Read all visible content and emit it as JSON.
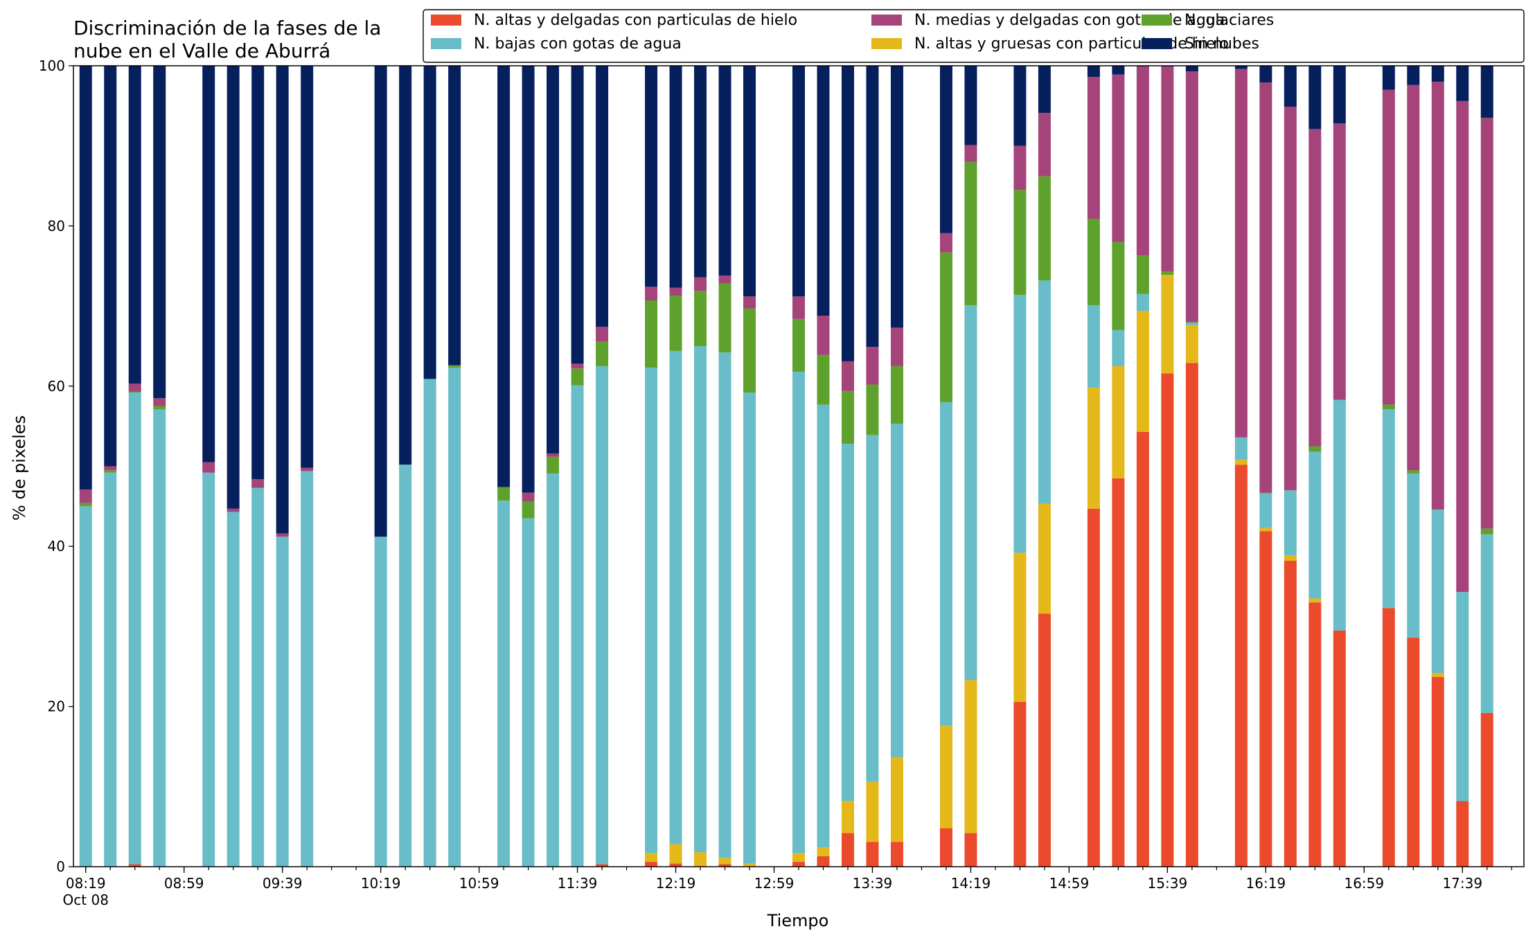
{
  "chart_data": {
    "type": "bar",
    "stacked": true,
    "title_lines": [
      "Discriminación de la fases de la",
      "nube en el Valle de Aburrá"
    ],
    "xlabel": "Tiempo",
    "ylabel": "% de pixeles",
    "ylim": [
      0,
      100
    ],
    "yticks": [
      0,
      20,
      40,
      60,
      80,
      100
    ],
    "x_start": "08:19",
    "x_end": "17:59",
    "bar_interval_minutes": 10,
    "xtick_interval_minutes": 40,
    "xtick_labels": [
      "08:19",
      "08:59",
      "09:39",
      "10:19",
      "10:59",
      "11:39",
      "12:19",
      "12:59",
      "13:39",
      "14:19",
      "14:59",
      "15:39",
      "16:19",
      "16:59",
      "17:39"
    ],
    "xtick_sublabel": "Oct 08",
    "legend_position": "top-right",
    "grid": false,
    "series": [
      {
        "name": "N. altas y delgadas con particulas de hielo",
        "color": "#ec4a2c"
      },
      {
        "name": "N. altas y gruesas con particulas de hielo",
        "color": "#e5b81a"
      },
      {
        "name": "N. bajas con gotas de agua",
        "color": "#68bdc8"
      },
      {
        "name": "N. glaciares",
        "color": "#5ea22d"
      },
      {
        "name": "N. medias y delgadas con gotas de agua",
        "color": "#a5437b"
      },
      {
        "name": "Sin nubes",
        "color": "#06205e"
      }
    ],
    "legend_order": [
      0,
      2,
      4,
      1,
      3,
      5
    ],
    "bars": [
      {
        "time": "08:19",
        "values": [
          0,
          0,
          45,
          0.4,
          1.7,
          52.9
        ]
      },
      {
        "time": "08:29",
        "values": [
          0,
          0,
          49.2,
          0.3,
          0.5,
          50
        ]
      },
      {
        "time": "08:39",
        "values": [
          0.3,
          0,
          58.9,
          0.1,
          1.0,
          39.7
        ]
      },
      {
        "time": "08:49",
        "values": [
          0,
          0,
          57.1,
          0.4,
          1.0,
          41.5
        ]
      },
      {
        "time": "09:09",
        "values": [
          0,
          0,
          49.2,
          0,
          1.3,
          49.5
        ]
      },
      {
        "time": "09:19",
        "values": [
          0,
          0,
          44.3,
          0,
          0.4,
          55.3
        ]
      },
      {
        "time": "09:29",
        "values": [
          0,
          0,
          47.3,
          0,
          1.1,
          51.6
        ]
      },
      {
        "time": "09:39",
        "values": [
          0,
          0,
          41.2,
          0,
          0.4,
          58.4
        ]
      },
      {
        "time": "09:49",
        "values": [
          0,
          0,
          49.4,
          0,
          0.4,
          50.2
        ]
      },
      {
        "time": "10:19",
        "values": [
          0,
          0,
          41.2,
          0,
          0,
          58.8
        ]
      },
      {
        "time": "10:29",
        "values": [
          0,
          0,
          50.2,
          0,
          0,
          49.8
        ]
      },
      {
        "time": "10:39",
        "values": [
          0,
          0,
          60.9,
          0,
          0,
          39.1
        ]
      },
      {
        "time": "10:49",
        "values": [
          0,
          0,
          62.3,
          0.3,
          0,
          37.4
        ]
      },
      {
        "time": "11:09",
        "values": [
          0,
          0,
          45.7,
          1.7,
          0,
          52.6
        ]
      },
      {
        "time": "11:19",
        "values": [
          0,
          0,
          43.5,
          2.1,
          1.1,
          53.3
        ]
      },
      {
        "time": "11:29",
        "values": [
          0,
          0,
          49.1,
          2.1,
          0.4,
          48.4
        ]
      },
      {
        "time": "11:39",
        "values": [
          0,
          0,
          60.1,
          2.1,
          0.6,
          37.2
        ]
      },
      {
        "time": "11:49",
        "values": [
          0.3,
          0,
          62.2,
          3.1,
          1.8,
          32.6
        ]
      },
      {
        "time": "12:09",
        "values": [
          0.6,
          1.1,
          60.6,
          8.4,
          1.7,
          27.6
        ]
      },
      {
        "time": "12:19",
        "values": [
          0.4,
          2.4,
          61.6,
          6.9,
          1.0,
          27.7
        ]
      },
      {
        "time": "12:29",
        "values": [
          0.1,
          1.7,
          63.2,
          6.9,
          1.7,
          26.4
        ]
      },
      {
        "time": "12:39",
        "values": [
          0.3,
          0.8,
          63.1,
          8.6,
          1.0,
          26.2
        ]
      },
      {
        "time": "12:49",
        "values": [
          0,
          0.4,
          58.8,
          10.5,
          1.5,
          28.8
        ]
      },
      {
        "time": "13:09",
        "values": [
          0.6,
          1.1,
          60.1,
          6.6,
          2.8,
          28.8
        ]
      },
      {
        "time": "13:19",
        "values": [
          1.3,
          1.1,
          55.3,
          6.2,
          4.9,
          31.2
        ]
      },
      {
        "time": "13:29",
        "values": [
          4.2,
          4.0,
          44.6,
          6.6,
          3.7,
          36.9
        ]
      },
      {
        "time": "13:39",
        "values": [
          3.1,
          7.5,
          43.3,
          6.3,
          4.7,
          35.1
        ]
      },
      {
        "time": "13:49",
        "values": [
          3.1,
          10.6,
          41.6,
          7.2,
          4.8,
          32.7
        ]
      },
      {
        "time": "14:09",
        "values": [
          4.8,
          12.8,
          40.4,
          18.7,
          2.4,
          20.9
        ]
      },
      {
        "time": "14:19",
        "values": [
          4.2,
          19.1,
          46.8,
          17.9,
          2.1,
          9.9
        ]
      },
      {
        "time": "14:39",
        "values": [
          20.6,
          18.6,
          32.2,
          13.1,
          5.5,
          10.0
        ]
      },
      {
        "time": "14:49",
        "values": [
          31.6,
          13.7,
          27.9,
          13.0,
          7.9,
          5.9
        ]
      },
      {
        "time": "15:09",
        "values": [
          44.7,
          15.1,
          10.3,
          10.8,
          17.7,
          1.4
        ]
      },
      {
        "time": "15:19",
        "values": [
          48.5,
          14.0,
          4.5,
          11.0,
          20.9,
          1.1
        ]
      },
      {
        "time": "15:29",
        "values": [
          54.3,
          15.1,
          2.1,
          4.8,
          23.7,
          0
        ]
      },
      {
        "time": "15:39",
        "values": [
          61.6,
          12.3,
          0,
          0.4,
          25.7,
          0
        ]
      },
      {
        "time": "15:49",
        "values": [
          62.9,
          4.7,
          0.3,
          0.1,
          31.3,
          0.7
        ]
      },
      {
        "time": "16:09",
        "values": [
          50.2,
          0.6,
          2.8,
          0,
          46.0,
          0.4
        ]
      },
      {
        "time": "16:19",
        "values": [
          41.9,
          0.4,
          4.3,
          0.1,
          51.2,
          2.1
        ]
      },
      {
        "time": "16:29",
        "values": [
          38.2,
          0.7,
          8.1,
          0,
          47.9,
          5.1
        ]
      },
      {
        "time": "16:39",
        "values": [
          33.0,
          0.5,
          18.3,
          0.7,
          39.6,
          7.9
        ]
      },
      {
        "time": "16:49",
        "values": [
          29.5,
          0,
          28.8,
          0,
          34.5,
          7.2
        ]
      },
      {
        "time": "17:09",
        "values": [
          32.3,
          0,
          24.8,
          0.6,
          39.3,
          3.0
        ]
      },
      {
        "time": "17:19",
        "values": [
          28.6,
          0,
          20.5,
          0.4,
          48.1,
          2.4
        ]
      },
      {
        "time": "17:29",
        "values": [
          23.7,
          0.5,
          20.4,
          0,
          53.4,
          2.0
        ]
      },
      {
        "time": "17:39",
        "values": [
          8.2,
          0,
          26.1,
          0,
          61.3,
          4.4
        ]
      },
      {
        "time": "17:49",
        "values": [
          19.2,
          0,
          22.3,
          0.7,
          51.3,
          6.5
        ]
      }
    ]
  }
}
